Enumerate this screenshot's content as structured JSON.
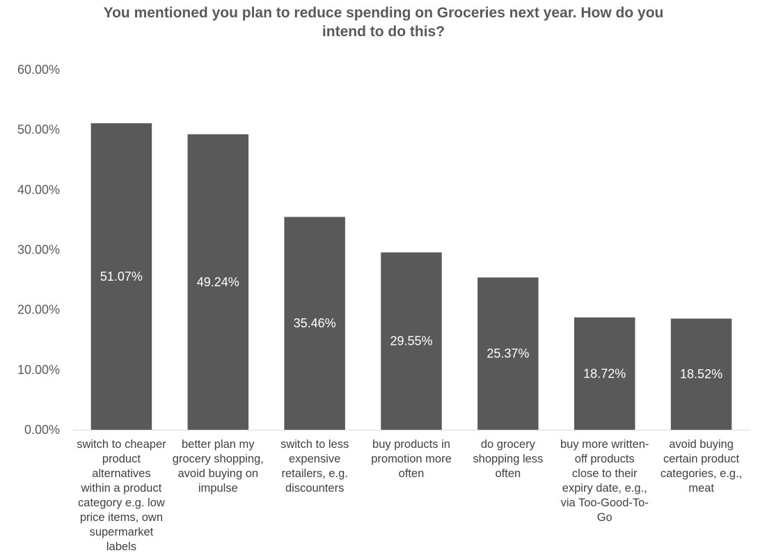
{
  "chart_data": {
    "type": "bar",
    "title_lines": [
      "You mentioned you plan to reduce spending on Groceries next year. How do you",
      "intend to do this?"
    ],
    "categories": [
      [
        "switch to cheaper",
        "product",
        "alternatives",
        "within a product",
        "category e.g. low",
        "price items, own",
        "supermarket",
        "labels"
      ],
      [
        "better plan my",
        "grocery shopping,",
        "avoid buying on",
        "impulse"
      ],
      [
        "switch to less",
        "expensive",
        "retailers, e.g.",
        "discounters"
      ],
      [
        "buy products in",
        "promotion more",
        "often"
      ],
      [
        "do grocery",
        "shopping less",
        "often"
      ],
      [
        "buy more written-",
        "off products",
        "close to their",
        "expiry date, e.g.,",
        "via Too-Good-To-",
        "Go"
      ],
      [
        "avoid buying",
        "certain product",
        "categories, e.g.,",
        "meat"
      ]
    ],
    "values": [
      51.07,
      49.24,
      35.46,
      29.55,
      25.37,
      18.72,
      18.52
    ],
    "data_labels": [
      "51.07%",
      "49.24%",
      "35.46%",
      "29.55%",
      "25.37%",
      "18.72%",
      "18.52%"
    ],
    "y_ticks": [
      0,
      10,
      20,
      30,
      40,
      50,
      60
    ],
    "y_tick_labels": [
      "0.00%",
      "10.00%",
      "20.00%",
      "30.00%",
      "40.00%",
      "50.00%",
      "60.00%"
    ],
    "ylim": [
      0,
      60
    ],
    "xlabel": "",
    "ylabel": "",
    "grid": false,
    "legend": "none",
    "bar_color": "#595959",
    "axis_color": "#d9d9d9"
  }
}
